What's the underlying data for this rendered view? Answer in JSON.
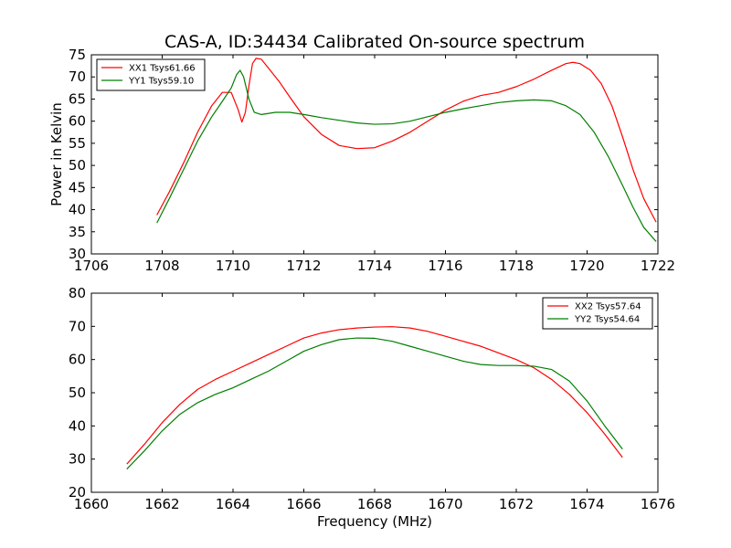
{
  "chart_data": [
    {
      "type": "line",
      "title": "CAS-A, ID:34434 Calibrated On-source spectrum",
      "xlabel": "",
      "ylabel": "Power in Kelvin",
      "xlim": [
        1706,
        1722
      ],
      "ylim": [
        30,
        75
      ],
      "xticks": [
        1706,
        1708,
        1710,
        1712,
        1714,
        1716,
        1718,
        1720,
        1722
      ],
      "yticks": [
        30,
        35,
        40,
        45,
        50,
        55,
        60,
        65,
        70,
        75
      ],
      "grid": false,
      "legend_position": "top-left",
      "series": [
        {
          "name": "XX1 Tsys61.66",
          "color": "#ff0000",
          "x": [
            1707.85,
            1708.2,
            1708.6,
            1709.0,
            1709.4,
            1709.7,
            1709.95,
            1710.15,
            1710.25,
            1710.35,
            1710.45,
            1710.55,
            1710.65,
            1710.8,
            1711.0,
            1711.3,
            1711.6,
            1712.0,
            1712.5,
            1713.0,
            1713.5,
            1714.0,
            1714.5,
            1715.0,
            1715.5,
            1716.0,
            1716.5,
            1717.0,
            1717.5,
            1718.0,
            1718.5,
            1719.0,
            1719.4,
            1719.6,
            1719.8,
            1720.1,
            1720.4,
            1720.7,
            1721.0,
            1721.3,
            1721.6,
            1721.95
          ],
          "y": [
            38.8,
            44.0,
            50.5,
            57.5,
            63.5,
            66.5,
            66.5,
            62.5,
            59.8,
            62.0,
            68.0,
            73.0,
            74.2,
            74.0,
            72.0,
            69.0,
            65.5,
            61.0,
            57.0,
            54.5,
            53.8,
            54.0,
            55.5,
            57.5,
            60.0,
            62.5,
            64.5,
            65.8,
            66.5,
            67.8,
            69.5,
            71.5,
            73.0,
            73.3,
            73.0,
            71.5,
            68.5,
            63.5,
            56.5,
            49.0,
            42.5,
            37.2
          ]
        },
        {
          "name": "YY1 Tsys59.10",
          "color": "#007f00",
          "x": [
            1707.85,
            1708.2,
            1708.6,
            1709.0,
            1709.4,
            1709.7,
            1709.95,
            1710.1,
            1710.2,
            1710.3,
            1710.45,
            1710.6,
            1710.8,
            1711.2,
            1711.6,
            1712.0,
            1712.5,
            1713.0,
            1713.5,
            1714.0,
            1714.5,
            1715.0,
            1715.5,
            1716.0,
            1716.5,
            1717.0,
            1717.5,
            1718.0,
            1718.5,
            1719.0,
            1719.4,
            1719.8,
            1720.2,
            1720.6,
            1721.0,
            1721.3,
            1721.6,
            1721.95
          ],
          "y": [
            37.0,
            42.5,
            49.0,
            55.5,
            61.0,
            64.5,
            67.5,
            70.5,
            71.5,
            70.0,
            65.0,
            62.0,
            61.5,
            62.0,
            62.0,
            61.5,
            60.8,
            60.2,
            59.6,
            59.3,
            59.4,
            60.0,
            61.0,
            62.0,
            62.8,
            63.5,
            64.2,
            64.6,
            64.8,
            64.6,
            63.5,
            61.5,
            57.5,
            52.0,
            45.5,
            40.5,
            36.0,
            32.8
          ]
        }
      ]
    },
    {
      "type": "line",
      "title": "",
      "xlabel": "Frequency (MHz)",
      "ylabel": "",
      "xlim": [
        1660,
        1676
      ],
      "ylim": [
        20,
        80
      ],
      "xticks": [
        1660,
        1662,
        1664,
        1666,
        1668,
        1670,
        1672,
        1674,
        1676
      ],
      "yticks": [
        20,
        30,
        40,
        50,
        60,
        70,
        80
      ],
      "grid": false,
      "legend_position": "top-right",
      "series": [
        {
          "name": "XX2 Tsys57.64",
          "color": "#ff0000",
          "x": [
            1661.0,
            1661.5,
            1662.0,
            1662.5,
            1663.0,
            1663.5,
            1664.0,
            1664.5,
            1665.0,
            1665.5,
            1666.0,
            1666.5,
            1667.0,
            1667.5,
            1668.0,
            1668.5,
            1669.0,
            1669.5,
            1670.0,
            1670.5,
            1671.0,
            1671.5,
            1672.0,
            1672.5,
            1673.0,
            1673.5,
            1674.0,
            1674.5,
            1675.0
          ],
          "y": [
            28.5,
            34.5,
            41.0,
            46.5,
            51.0,
            54.0,
            56.5,
            59.0,
            61.5,
            64.0,
            66.5,
            68.0,
            69.0,
            69.5,
            69.8,
            69.9,
            69.5,
            68.5,
            67.0,
            65.5,
            64.0,
            62.0,
            60.0,
            57.5,
            54.0,
            49.5,
            44.0,
            37.5,
            30.5
          ]
        },
        {
          "name": "YY2 Tsys54.64",
          "color": "#007f00",
          "x": [
            1661.0,
            1661.5,
            1662.0,
            1662.5,
            1663.0,
            1663.5,
            1664.0,
            1664.5,
            1665.0,
            1665.5,
            1666.0,
            1666.5,
            1667.0,
            1667.5,
            1668.0,
            1668.5,
            1669.0,
            1669.5,
            1670.0,
            1670.5,
            1671.0,
            1671.5,
            1672.0,
            1672.5,
            1673.0,
            1673.5,
            1674.0,
            1674.5,
            1675.0
          ],
          "y": [
            27.0,
            32.5,
            38.5,
            43.5,
            47.0,
            49.5,
            51.5,
            54.0,
            56.5,
            59.5,
            62.5,
            64.5,
            66.0,
            66.5,
            66.4,
            65.5,
            64.0,
            62.5,
            61.0,
            59.5,
            58.5,
            58.2,
            58.2,
            58.0,
            57.0,
            53.5,
            47.5,
            40.0,
            33.0
          ]
        }
      ]
    }
  ]
}
